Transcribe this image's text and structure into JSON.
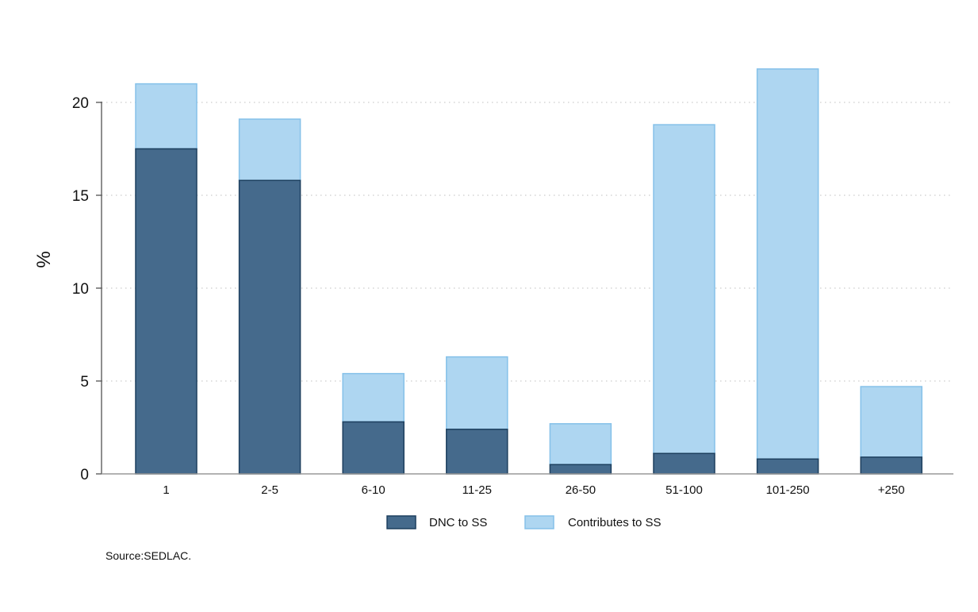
{
  "chart_data": {
    "type": "bar",
    "stacked": true,
    "categories": [
      "1",
      "2-5",
      "6-10",
      "11-25",
      "26-50",
      "51-100",
      "101-250",
      "+250"
    ],
    "series": [
      {
        "name": "DNC to SS",
        "values": [
          17.5,
          15.8,
          2.8,
          2.4,
          0.5,
          1.1,
          0.8,
          0.9
        ],
        "color": "#456a8c",
        "stroke": "#1d3f5e"
      },
      {
        "name": "Contributes to SS",
        "values": [
          3.5,
          3.3,
          2.6,
          3.9,
          2.2,
          17.7,
          21.0,
          3.8
        ],
        "color": "#aed6f1",
        "stroke": "#85c1e9"
      }
    ],
    "ylabel": "%",
    "xlabel": "",
    "ylim": [
      0,
      22
    ],
    "yticks": [
      0,
      5,
      10,
      15,
      20
    ],
    "grid": true,
    "legend_position": "bottom",
    "note": "Source:SEDLAC."
  }
}
